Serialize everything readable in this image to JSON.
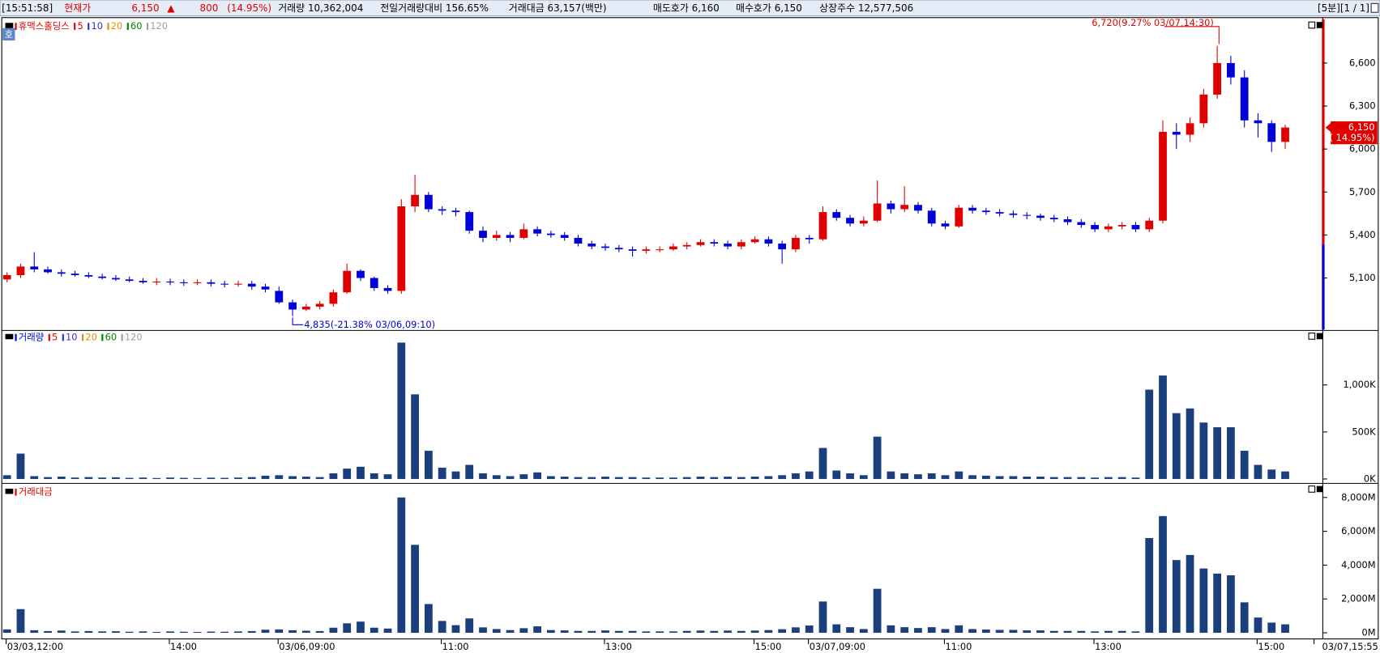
{
  "header": {
    "time": "[15:51:58]",
    "price_label": "현재가",
    "price": "6,150",
    "arrow": "▲",
    "change": "800",
    "change_pct": "(14.95%)",
    "volume": "거래량 10,362,004",
    "volume_ratio": "전일거래량대비 156.65%",
    "amount": "거래대금 63,157(백만)",
    "ask": "매도호가 6,160",
    "bid": "매수호가 6,150",
    "shares": "상장주수 12,577,506",
    "period": "[5분][1 / 1]",
    "badge": "호"
  },
  "chart_data": [
    {
      "type": "candlestick",
      "title": "휴맥스홀딩스",
      "title_color": "#e00000",
      "up_color": "#e00000",
      "down_color": "#0000d8",
      "ma_legend": [
        {
          "name": "5",
          "color": "#e00000"
        },
        {
          "name": "10",
          "color": "#3030e0"
        },
        {
          "name": "20",
          "color": "#e09000"
        },
        {
          "name": "60",
          "color": "#008000"
        },
        {
          "name": "120",
          "color": "#a0a0a0"
        }
      ],
      "open": [
        5090,
        5120,
        5180,
        5160,
        5140,
        5130,
        5120,
        5110,
        5100,
        5090,
        5080,
        5070,
        5075,
        5070,
        5065,
        5070,
        5060,
        5055,
        5060,
        5040,
        5010,
        4930,
        4880,
        4900,
        4920,
        5000,
        5150,
        5100,
        5030,
        5010,
        5600,
        5680,
        5580,
        5570,
        5560,
        5430,
        5380,
        5400,
        5380,
        5440,
        5410,
        5400,
        5380,
        5340,
        5320,
        5310,
        5300,
        5290,
        5300,
        5300,
        5320,
        5330,
        5350,
        5340,
        5320,
        5350,
        5370,
        5340,
        5300,
        5380,
        5370,
        5560,
        5520,
        5480,
        5500,
        5620,
        5580,
        5610,
        5570,
        5480,
        5460,
        5590,
        5570,
        5560,
        5550,
        5540,
        5535,
        5520,
        5510,
        5490,
        5470,
        5440,
        5460,
        5470,
        5440,
        5500,
        6120,
        6100,
        6180,
        6380,
        6600,
        6500,
        6200,
        6180,
        6050
      ],
      "high": [
        5140,
        5200,
        5280,
        5180,
        5160,
        5150,
        5140,
        5130,
        5120,
        5110,
        5100,
        5100,
        5095,
        5090,
        5090,
        5090,
        5080,
        5080,
        5080,
        5060,
        5040,
        4950,
        4920,
        4940,
        5020,
        5200,
        5160,
        5110,
        5050,
        5650,
        5820,
        5700,
        5600,
        5590,
        5570,
        5460,
        5430,
        5420,
        5480,
        5460,
        5430,
        5420,
        5400,
        5360,
        5340,
        5330,
        5320,
        5320,
        5320,
        5340,
        5350,
        5370,
        5370,
        5360,
        5370,
        5390,
        5390,
        5360,
        5400,
        5400,
        5600,
        5580,
        5540,
        5530,
        5780,
        5640,
        5740,
        5630,
        5590,
        5500,
        5610,
        5610,
        5590,
        5580,
        5570,
        5560,
        5550,
        5540,
        5530,
        5510,
        5490,
        5480,
        5490,
        5490,
        5520,
        6200,
        6180,
        6220,
        6420,
        6720,
        6650,
        6550,
        6250,
        6200,
        6170
      ],
      "low": [
        5070,
        5100,
        5140,
        5130,
        5110,
        5110,
        5100,
        5090,
        5080,
        5070,
        5060,
        5050,
        5050,
        5045,
        5050,
        5040,
        5035,
        5040,
        5020,
        5000,
        4920,
        4835,
        4870,
        4880,
        4900,
        4990,
        5080,
        5010,
        4990,
        4990,
        5560,
        5560,
        5540,
        5530,
        5410,
        5350,
        5360,
        5350,
        5370,
        5390,
        5380,
        5360,
        5320,
        5300,
        5290,
        5280,
        5250,
        5270,
        5280,
        5290,
        5300,
        5320,
        5320,
        5300,
        5300,
        5340,
        5320,
        5200,
        5280,
        5340,
        5360,
        5500,
        5460,
        5460,
        5490,
        5550,
        5560,
        5550,
        5460,
        5440,
        5450,
        5550,
        5540,
        5530,
        5520,
        5510,
        5500,
        5490,
        5470,
        5450,
        5420,
        5420,
        5440,
        5420,
        5420,
        5480,
        6000,
        6050,
        6150,
        6350,
        6450,
        6150,
        6080,
        5980,
        6000
      ],
      "close": [
        5120,
        5180,
        5160,
        5140,
        5130,
        5120,
        5110,
        5100,
        5090,
        5080,
        5070,
        5075,
        5070,
        5065,
        5070,
        5060,
        5055,
        5060,
        5040,
        5020,
        4930,
        4880,
        4900,
        4920,
        5000,
        5150,
        5100,
        5030,
        5010,
        5600,
        5680,
        5580,
        5570,
        5560,
        5430,
        5380,
        5400,
        5380,
        5440,
        5410,
        5400,
        5380,
        5340,
        5320,
        5310,
        5300,
        5290,
        5300,
        5300,
        5320,
        5330,
        5350,
        5340,
        5320,
        5350,
        5370,
        5340,
        5300,
        5380,
        5370,
        5560,
        5520,
        5480,
        5500,
        5620,
        5580,
        5610,
        5570,
        5480,
        5460,
        5590,
        5570,
        5560,
        5550,
        5540,
        5535,
        5520,
        5510,
        5490,
        5470,
        5440,
        5460,
        5470,
        5440,
        5500,
        6120,
        6100,
        6180,
        6380,
        6600,
        6500,
        6200,
        6180,
        6050,
        6150
      ],
      "ylim": [
        4740,
        6905
      ],
      "yticks": [
        {
          "value": 5100,
          "label": "5,100"
        },
        {
          "value": 5400,
          "label": "5,400"
        },
        {
          "value": 5700,
          "label": "5,700"
        },
        {
          "value": 6000,
          "label": "6,000"
        },
        {
          "value": 6300,
          "label": "6,300"
        },
        {
          "value": 6600,
          "label": "6,600"
        }
      ],
      "high_annotation": {
        "value": 6720,
        "label": "6,720(9.27% 03/07,14:30)"
      },
      "low_annotation": {
        "value": 4835,
        "label": "4,835(-21.38% 03/06,09:10)"
      },
      "last_price": {
        "value": 6150,
        "label": "6,150"
      },
      "last_change": "( 14.95%)"
    },
    {
      "type": "bar",
      "title": "거래량",
      "title_color": "#0000d8",
      "color": "#1b3f7c",
      "ma_legend": [
        {
          "name": "5",
          "color": "#e00000"
        },
        {
          "name": "10",
          "color": "#3030e0"
        },
        {
          "name": "20",
          "color": "#e09000"
        },
        {
          "name": "60",
          "color": "#008000"
        },
        {
          "name": "120",
          "color": "#a0a0a0"
        }
      ],
      "values": [
        40,
        270,
        30,
        20,
        25,
        15,
        20,
        15,
        18,
        12,
        15,
        10,
        15,
        12,
        10,
        14,
        12,
        15,
        20,
        35,
        40,
        30,
        25,
        20,
        60,
        110,
        130,
        60,
        50,
        1450,
        900,
        300,
        120,
        80,
        150,
        60,
        40,
        30,
        50,
        70,
        30,
        25,
        20,
        20,
        25,
        20,
        20,
        15,
        15,
        15,
        20,
        25,
        20,
        25,
        20,
        25,
        30,
        40,
        60,
        80,
        330,
        90,
        60,
        40,
        450,
        80,
        60,
        50,
        60,
        40,
        80,
        40,
        35,
        30,
        30,
        25,
        25,
        20,
        20,
        20,
        15,
        20,
        20,
        15,
        950,
        1100,
        700,
        750,
        600,
        550,
        550,
        300,
        150,
        100,
        80
      ],
      "ylim": [
        0,
        1570
      ],
      "yticks": [
        {
          "value": 0,
          "label": "0K"
        },
        {
          "value": 500,
          "label": "500K"
        },
        {
          "value": 1000,
          "label": "1,000K"
        }
      ]
    },
    {
      "type": "bar",
      "title": "거래대금",
      "title_color": "#e00000",
      "color": "#1b3f7c",
      "values": [
        200,
        1400,
        150,
        100,
        130,
        80,
        100,
        80,
        90,
        60,
        80,
        50,
        80,
        60,
        50,
        70,
        60,
        80,
        100,
        180,
        200,
        150,
        120,
        100,
        300,
        560,
        660,
        300,
        250,
        8000,
        5200,
        1700,
        700,
        450,
        850,
        320,
        220,
        160,
        270,
        380,
        160,
        140,
        110,
        110,
        140,
        110,
        110,
        80,
        80,
        80,
        110,
        130,
        110,
        130,
        110,
        130,
        160,
        210,
        320,
        430,
        1850,
        500,
        330,
        220,
        2600,
        440,
        330,
        280,
        330,
        220,
        440,
        220,
        190,
        170,
        170,
        140,
        140,
        110,
        110,
        110,
        80,
        110,
        110,
        80,
        5600,
        6900,
        4300,
        4600,
        3800,
        3500,
        3400,
        1800,
        900,
        600,
        500
      ],
      "ylim": [
        0,
        8730
      ],
      "yticks": [
        {
          "value": 0,
          "label": "0M"
        },
        {
          "value": 2000,
          "label": "2,000M"
        },
        {
          "value": 4000,
          "label": "4,000M"
        },
        {
          "value": 6000,
          "label": "6,000M"
        },
        {
          "value": 8000,
          "label": "8,000M"
        }
      ],
      "categories": [
        "03/03,12:00",
        null,
        null,
        null,
        null,
        null,
        null,
        null,
        null,
        null,
        null,
        null,
        "14:00",
        null,
        null,
        null,
        null,
        null,
        null,
        null,
        "03/06,09:00",
        null,
        null,
        null,
        null,
        null,
        null,
        null,
        null,
        null,
        null,
        null,
        "11:00",
        null,
        null,
        null,
        null,
        null,
        null,
        null,
        null,
        null,
        null,
        null,
        "13:00",
        null,
        null,
        null,
        null,
        null,
        null,
        null,
        null,
        null,
        null,
        "15:00",
        null,
        null,
        null,
        "03/07,09:00",
        null,
        null,
        null,
        null,
        null,
        null,
        null,
        null,
        null,
        "11:00",
        null,
        null,
        null,
        null,
        null,
        null,
        null,
        null,
        null,
        null,
        "13:00",
        null,
        null,
        null,
        null,
        null,
        null,
        null,
        null,
        null,
        null,
        null,
        "15:00",
        null,
        null
      ],
      "end_label": "03/07,15:55"
    }
  ]
}
